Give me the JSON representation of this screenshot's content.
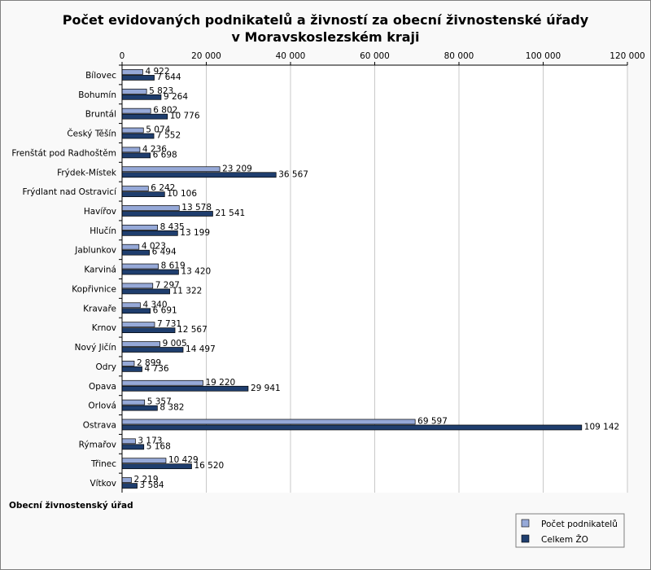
{
  "chart_data": {
    "type": "bar",
    "orientation": "horizontal",
    "title_line1": "Počet evidovaných podnikatelů a živností za obecní živnostenské úřady",
    "title_line2": "v Moravskoslezském kraji",
    "ylabel": "Obecní živnostenský úřad",
    "xlim": [
      0,
      120000
    ],
    "xticks": [
      0,
      20000,
      40000,
      60000,
      80000,
      100000,
      120000
    ],
    "xtick_labels": [
      "0",
      "20 000",
      "40 000",
      "60 000",
      "80 000",
      "100 000",
      "120 000"
    ],
    "grid": true,
    "legend_position": "bottom-right",
    "categories": [
      "Bílovec",
      "Bohumín",
      "Bruntál",
      "Český Těšín",
      "Frenštát pod Radhoštěm",
      "Frýdek-Místek",
      "Frýdlant nad Ostravicí",
      "Havířov",
      "Hlučín",
      "Jablunkov",
      "Karviná",
      "Kopřivnice",
      "Kravaře",
      "Krnov",
      "Nový Jičín",
      "Odry",
      "Opava",
      "Orlová",
      "Ostrava",
      "Rýmařov",
      "Třinec",
      "Vítkov"
    ],
    "series": [
      {
        "name": "Počet podnikatelů",
        "color": "#96a9d8",
        "values": [
          4922,
          5823,
          6802,
          5074,
          4236,
          23209,
          6242,
          13578,
          8435,
          4023,
          8619,
          7297,
          4340,
          7731,
          9005,
          2899,
          19220,
          5357,
          69597,
          3173,
          10429,
          2219
        ],
        "value_labels": [
          "4 922",
          "5 823",
          "6 802",
          "5 074",
          "4 236",
          "23 209",
          "6 242",
          "13 578",
          "8 435",
          "4 023",
          "8 619",
          "7 297",
          "4 340",
          "7 731",
          "9 005",
          "2 899",
          "19 220",
          "5 357",
          "69 597",
          "3 173",
          "10 429",
          "2 219"
        ]
      },
      {
        "name": "Celkem ŽO",
        "color": "#1f3e6e",
        "values": [
          7644,
          9264,
          10776,
          7552,
          6698,
          36567,
          10106,
          21541,
          13199,
          6494,
          13420,
          11322,
          6691,
          12567,
          14497,
          4736,
          29941,
          8382,
          109142,
          5168,
          16520,
          3584
        ],
        "value_labels": [
          "7 644",
          "9 264",
          "10 776",
          "7 552",
          "6 698",
          "36 567",
          "10 106",
          "21 541",
          "13 199",
          "6 494",
          "13 420",
          "11 322",
          "6 691",
          "12 567",
          "14 497",
          "4 736",
          "29 941",
          "8 382",
          "109 142",
          "5 168",
          "16 520",
          "3 584"
        ]
      }
    ]
  }
}
